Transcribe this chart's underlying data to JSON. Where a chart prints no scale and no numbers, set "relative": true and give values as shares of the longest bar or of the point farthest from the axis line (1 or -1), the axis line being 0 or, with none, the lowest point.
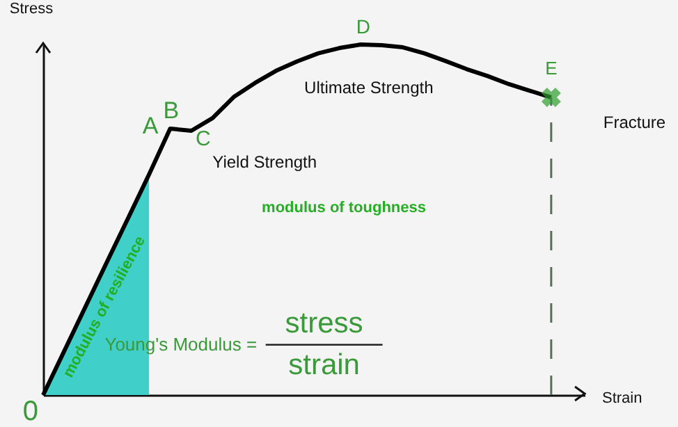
{
  "chart_data": {
    "type": "line",
    "relative": true,
    "xlabel": "Strain",
    "ylabel": "Stress",
    "color": "#000000",
    "categories": [
      null,
      null,
      null,
      null,
      null,
      null,
      null,
      null,
      null,
      null,
      null,
      null,
      null,
      null,
      null,
      null,
      null,
      null,
      null,
      null,
      null,
      null,
      null,
      null,
      null
    ],
    "values": [
      0,
      0.126,
      0.252,
      0.378,
      0.503,
      0.629,
      0.76,
      0.754,
      0.79,
      0.85,
      0.89,
      0.925,
      0.952,
      0.975,
      0.99,
      1.0,
      0.998,
      0.992,
      0.975,
      0.953,
      0.93,
      0.91,
      0.887,
      0.868,
      0.849
    ],
    "annotations": [
      "A",
      "B",
      "C",
      "D",
      "E",
      "Ultimate Strength",
      "Yield Strength",
      "Fracture",
      "modulus of toughness",
      "modulus of resilience",
      "Young's Modulus =",
      "stress",
      "strain",
      "0"
    ]
  }
}
